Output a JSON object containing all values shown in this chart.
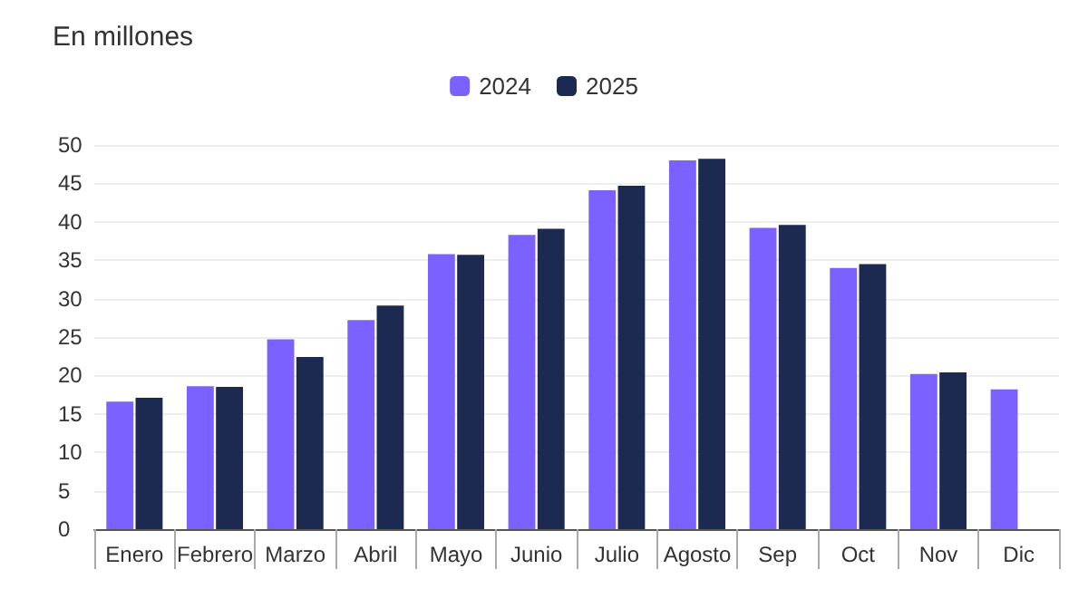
{
  "chart_data": {
    "type": "bar",
    "title": "En millones",
    "categories": [
      "Enero",
      "Febrero",
      "Marzo",
      "Abril",
      "Mayo",
      "Junio",
      "Julio",
      "Agosto",
      "Sep",
      "Oct",
      "Nov",
      "Dic"
    ],
    "series": [
      {
        "name": "2024",
        "color": "#7b61ff",
        "values": [
          16.6,
          18.6,
          24.7,
          27.2,
          35.8,
          38.3,
          44.1,
          48.0,
          39.2,
          34.0,
          20.2,
          18.2
        ]
      },
      {
        "name": "2025",
        "color": "#1c2951",
        "values": [
          17.1,
          18.5,
          22.4,
          29.1,
          35.7,
          39.1,
          44.7,
          48.2,
          39.6,
          34.5,
          20.4,
          null
        ]
      }
    ],
    "ylim": [
      0,
      50
    ],
    "yticks": [
      0,
      5,
      10,
      15,
      20,
      25,
      30,
      35,
      40,
      45,
      50
    ],
    "grid": "y",
    "legend": "top"
  }
}
